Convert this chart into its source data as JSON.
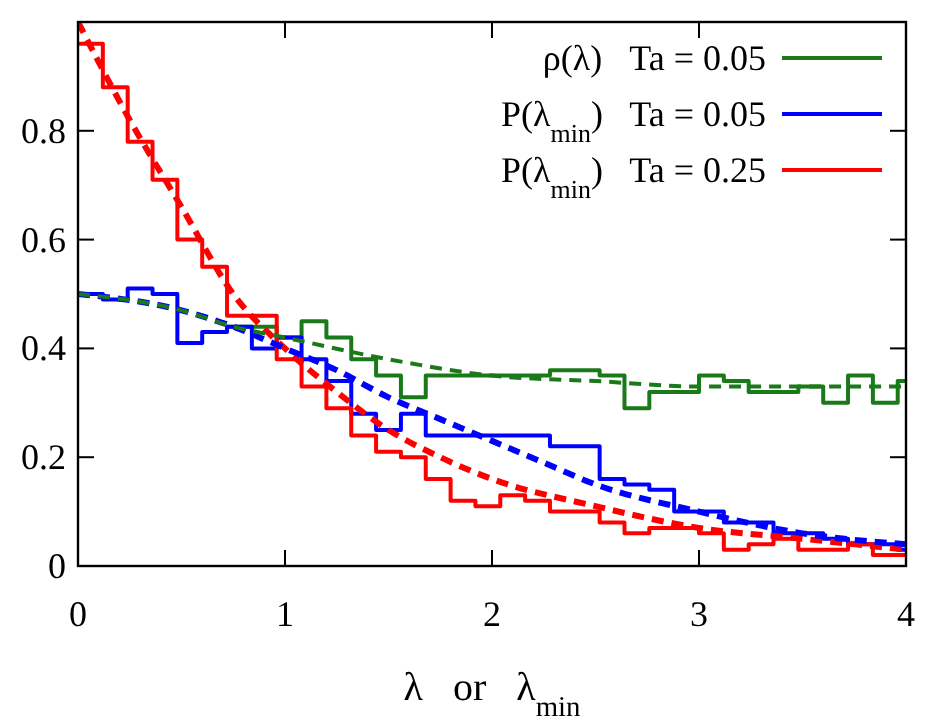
{
  "chart_data": {
    "type": "step",
    "xlabel": "λ   or   λ$_{min}$",
    "xlim": [
      0,
      4
    ],
    "ylim": [
      0,
      1
    ],
    "xticks": [
      0,
      1,
      2,
      3,
      4
    ],
    "yticks": [
      0,
      0.2,
      0.4,
      0.6,
      0.8
    ],
    "legend": "top right",
    "grid": false,
    "series": [
      {
        "name": "ρ(λ)   Ta = 0.05",
        "color": "#1a7a1a",
        "x": [
          0.72,
          0.84,
          0.96,
          1.08,
          1.2,
          1.32,
          1.44,
          1.56,
          1.68,
          1.8,
          1.92,
          2.04,
          2.16,
          2.28,
          2.4,
          2.52,
          2.64,
          2.76,
          2.88,
          3,
          3.12,
          3.24,
          3.36,
          3.48,
          3.6,
          3.72,
          3.84,
          3.96,
          4
        ],
        "values": [
          0.44,
          0.44,
          0.42,
          0.45,
          0.42,
          0.38,
          0.35,
          0.31,
          0.35,
          0.35,
          0.35,
          0.35,
          0.35,
          0.36,
          0.36,
          0.35,
          0.29,
          0.32,
          0.32,
          0.35,
          0.34,
          0.32,
          0.32,
          0.33,
          0.3,
          0.35,
          0.3,
          0.34,
          0.34
        ]
      },
      {
        "name": "P(λ$_{min}$)   Ta = 0.05",
        "color": "#0000ff",
        "x": [
          0,
          0.12,
          0.24,
          0.36,
          0.48,
          0.6,
          0.72,
          0.84,
          0.96,
          1.08,
          1.2,
          1.32,
          1.44,
          1.56,
          1.68,
          1.8,
          1.92,
          2.04,
          2.16,
          2.28,
          2.4,
          2.52,
          2.64,
          2.76,
          2.88,
          3,
          3.12,
          3.24,
          3.36,
          3.48,
          3.6,
          3.72,
          3.84,
          3.96,
          4
        ],
        "values": [
          0.5,
          0.49,
          0.51,
          0.5,
          0.41,
          0.43,
          0.44,
          0.4,
          0.42,
          0.38,
          0.34,
          0.28,
          0.25,
          0.28,
          0.24,
          0.24,
          0.24,
          0.24,
          0.24,
          0.22,
          0.22,
          0.16,
          0.15,
          0.14,
          0.1,
          0.1,
          0.08,
          0.08,
          0.06,
          0.06,
          0.05,
          0.04,
          0.04,
          0.03,
          0.03
        ]
      },
      {
        "name": "P(λ$_{min}$)   Ta = 0.25",
        "color": "#ff0000",
        "x": [
          0,
          0.12,
          0.24,
          0.36,
          0.48,
          0.6,
          0.72,
          0.84,
          0.96,
          1.08,
          1.2,
          1.32,
          1.44,
          1.56,
          1.68,
          1.8,
          1.92,
          2.04,
          2.16,
          2.28,
          2.4,
          2.52,
          2.64,
          2.76,
          2.88,
          3,
          3.12,
          3.24,
          3.36,
          3.48,
          3.6,
          3.72,
          3.84,
          3.96,
          4
        ],
        "values": [
          0.96,
          0.88,
          0.78,
          0.71,
          0.6,
          0.55,
          0.46,
          0.46,
          0.38,
          0.33,
          0.29,
          0.24,
          0.21,
          0.2,
          0.16,
          0.12,
          0.11,
          0.13,
          0.12,
          0.1,
          0.1,
          0.08,
          0.06,
          0.07,
          0.07,
          0.06,
          0.03,
          0.04,
          0.05,
          0.03,
          0.03,
          0.04,
          0.02,
          0.02,
          0.02
        ]
      },
      {
        "type": "line",
        "line_style": "dashed",
        "color": "#1a7a1a",
        "x": [
          0,
          0.5,
          0.75,
          1,
          1.5,
          2,
          2.5,
          3,
          3.5,
          4
        ],
        "values": [
          0.5,
          0.47,
          0.44,
          0.42,
          0.38,
          0.35,
          0.34,
          0.33,
          0.33,
          0.33
        ]
      },
      {
        "type": "line",
        "line_style": "dashed",
        "color": "#0000ff",
        "x": [
          0,
          0.5,
          0.75,
          1,
          1.25,
          1.5,
          1.75,
          2,
          2.25,
          2.5,
          3,
          3.5,
          4
        ],
        "values": [
          0.5,
          0.47,
          0.44,
          0.4,
          0.36,
          0.31,
          0.27,
          0.23,
          0.19,
          0.15,
          0.1,
          0.06,
          0.04
        ]
      },
      {
        "type": "line",
        "line_style": "dashed",
        "color": "#ff0000",
        "x": [
          0,
          0.25,
          0.5,
          0.75,
          1,
          1.25,
          1.5,
          1.75,
          2,
          2.5,
          3,
          3.5,
          4
        ],
        "values": [
          1.0,
          0.82,
          0.66,
          0.5,
          0.4,
          0.32,
          0.25,
          0.2,
          0.16,
          0.11,
          0.07,
          0.05,
          0.03
        ]
      }
    ]
  }
}
